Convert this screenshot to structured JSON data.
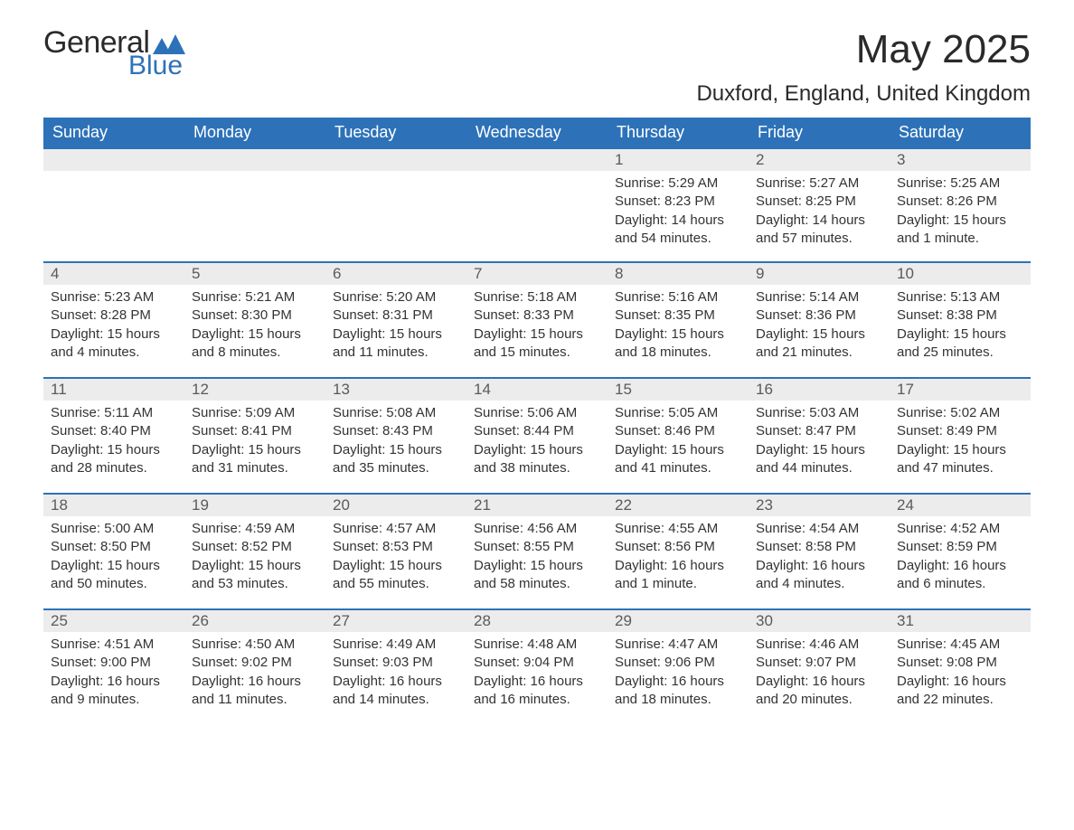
{
  "logo": {
    "text1": "General",
    "text2": "Blue",
    "text_color_dark": "#2a2a2a",
    "text_color_blue": "#2d72b8",
    "mark_color": "#2d72b8"
  },
  "title": "May 2025",
  "location": "Duxford, England, United Kingdom",
  "colors": {
    "header_bg": "#2d72b8",
    "header_text": "#ffffff",
    "daynum_bg": "#ececec",
    "daynum_text": "#5a5a5a",
    "body_text": "#333333",
    "week_border": "#2d72b8",
    "page_bg": "#ffffff"
  },
  "typography": {
    "title_fontsize": 44,
    "location_fontsize": 24,
    "header_fontsize": 18,
    "daynum_fontsize": 17,
    "body_fontsize": 15
  },
  "weekdays": [
    "Sunday",
    "Monday",
    "Tuesday",
    "Wednesday",
    "Thursday",
    "Friday",
    "Saturday"
  ],
  "weeks": [
    [
      {
        "n": "",
        "sunrise": "",
        "sunset": "",
        "daylight": ""
      },
      {
        "n": "",
        "sunrise": "",
        "sunset": "",
        "daylight": ""
      },
      {
        "n": "",
        "sunrise": "",
        "sunset": "",
        "daylight": ""
      },
      {
        "n": "",
        "sunrise": "",
        "sunset": "",
        "daylight": ""
      },
      {
        "n": "1",
        "sunrise": "Sunrise: 5:29 AM",
        "sunset": "Sunset: 8:23 PM",
        "daylight": "Daylight: 14 hours and 54 minutes."
      },
      {
        "n": "2",
        "sunrise": "Sunrise: 5:27 AM",
        "sunset": "Sunset: 8:25 PM",
        "daylight": "Daylight: 14 hours and 57 minutes."
      },
      {
        "n": "3",
        "sunrise": "Sunrise: 5:25 AM",
        "sunset": "Sunset: 8:26 PM",
        "daylight": "Daylight: 15 hours and 1 minute."
      }
    ],
    [
      {
        "n": "4",
        "sunrise": "Sunrise: 5:23 AM",
        "sunset": "Sunset: 8:28 PM",
        "daylight": "Daylight: 15 hours and 4 minutes."
      },
      {
        "n": "5",
        "sunrise": "Sunrise: 5:21 AM",
        "sunset": "Sunset: 8:30 PM",
        "daylight": "Daylight: 15 hours and 8 minutes."
      },
      {
        "n": "6",
        "sunrise": "Sunrise: 5:20 AM",
        "sunset": "Sunset: 8:31 PM",
        "daylight": "Daylight: 15 hours and 11 minutes."
      },
      {
        "n": "7",
        "sunrise": "Sunrise: 5:18 AM",
        "sunset": "Sunset: 8:33 PM",
        "daylight": "Daylight: 15 hours and 15 minutes."
      },
      {
        "n": "8",
        "sunrise": "Sunrise: 5:16 AM",
        "sunset": "Sunset: 8:35 PM",
        "daylight": "Daylight: 15 hours and 18 minutes."
      },
      {
        "n": "9",
        "sunrise": "Sunrise: 5:14 AM",
        "sunset": "Sunset: 8:36 PM",
        "daylight": "Daylight: 15 hours and 21 minutes."
      },
      {
        "n": "10",
        "sunrise": "Sunrise: 5:13 AM",
        "sunset": "Sunset: 8:38 PM",
        "daylight": "Daylight: 15 hours and 25 minutes."
      }
    ],
    [
      {
        "n": "11",
        "sunrise": "Sunrise: 5:11 AM",
        "sunset": "Sunset: 8:40 PM",
        "daylight": "Daylight: 15 hours and 28 minutes."
      },
      {
        "n": "12",
        "sunrise": "Sunrise: 5:09 AM",
        "sunset": "Sunset: 8:41 PM",
        "daylight": "Daylight: 15 hours and 31 minutes."
      },
      {
        "n": "13",
        "sunrise": "Sunrise: 5:08 AM",
        "sunset": "Sunset: 8:43 PM",
        "daylight": "Daylight: 15 hours and 35 minutes."
      },
      {
        "n": "14",
        "sunrise": "Sunrise: 5:06 AM",
        "sunset": "Sunset: 8:44 PM",
        "daylight": "Daylight: 15 hours and 38 minutes."
      },
      {
        "n": "15",
        "sunrise": "Sunrise: 5:05 AM",
        "sunset": "Sunset: 8:46 PM",
        "daylight": "Daylight: 15 hours and 41 minutes."
      },
      {
        "n": "16",
        "sunrise": "Sunrise: 5:03 AM",
        "sunset": "Sunset: 8:47 PM",
        "daylight": "Daylight: 15 hours and 44 minutes."
      },
      {
        "n": "17",
        "sunrise": "Sunrise: 5:02 AM",
        "sunset": "Sunset: 8:49 PM",
        "daylight": "Daylight: 15 hours and 47 minutes."
      }
    ],
    [
      {
        "n": "18",
        "sunrise": "Sunrise: 5:00 AM",
        "sunset": "Sunset: 8:50 PM",
        "daylight": "Daylight: 15 hours and 50 minutes."
      },
      {
        "n": "19",
        "sunrise": "Sunrise: 4:59 AM",
        "sunset": "Sunset: 8:52 PM",
        "daylight": "Daylight: 15 hours and 53 minutes."
      },
      {
        "n": "20",
        "sunrise": "Sunrise: 4:57 AM",
        "sunset": "Sunset: 8:53 PM",
        "daylight": "Daylight: 15 hours and 55 minutes."
      },
      {
        "n": "21",
        "sunrise": "Sunrise: 4:56 AM",
        "sunset": "Sunset: 8:55 PM",
        "daylight": "Daylight: 15 hours and 58 minutes."
      },
      {
        "n": "22",
        "sunrise": "Sunrise: 4:55 AM",
        "sunset": "Sunset: 8:56 PM",
        "daylight": "Daylight: 16 hours and 1 minute."
      },
      {
        "n": "23",
        "sunrise": "Sunrise: 4:54 AM",
        "sunset": "Sunset: 8:58 PM",
        "daylight": "Daylight: 16 hours and 4 minutes."
      },
      {
        "n": "24",
        "sunrise": "Sunrise: 4:52 AM",
        "sunset": "Sunset: 8:59 PM",
        "daylight": "Daylight: 16 hours and 6 minutes."
      }
    ],
    [
      {
        "n": "25",
        "sunrise": "Sunrise: 4:51 AM",
        "sunset": "Sunset: 9:00 PM",
        "daylight": "Daylight: 16 hours and 9 minutes."
      },
      {
        "n": "26",
        "sunrise": "Sunrise: 4:50 AM",
        "sunset": "Sunset: 9:02 PM",
        "daylight": "Daylight: 16 hours and 11 minutes."
      },
      {
        "n": "27",
        "sunrise": "Sunrise: 4:49 AM",
        "sunset": "Sunset: 9:03 PM",
        "daylight": "Daylight: 16 hours and 14 minutes."
      },
      {
        "n": "28",
        "sunrise": "Sunrise: 4:48 AM",
        "sunset": "Sunset: 9:04 PM",
        "daylight": "Daylight: 16 hours and 16 minutes."
      },
      {
        "n": "29",
        "sunrise": "Sunrise: 4:47 AM",
        "sunset": "Sunset: 9:06 PM",
        "daylight": "Daylight: 16 hours and 18 minutes."
      },
      {
        "n": "30",
        "sunrise": "Sunrise: 4:46 AM",
        "sunset": "Sunset: 9:07 PM",
        "daylight": "Daylight: 16 hours and 20 minutes."
      },
      {
        "n": "31",
        "sunrise": "Sunrise: 4:45 AM",
        "sunset": "Sunset: 9:08 PM",
        "daylight": "Daylight: 16 hours and 22 minutes."
      }
    ]
  ]
}
